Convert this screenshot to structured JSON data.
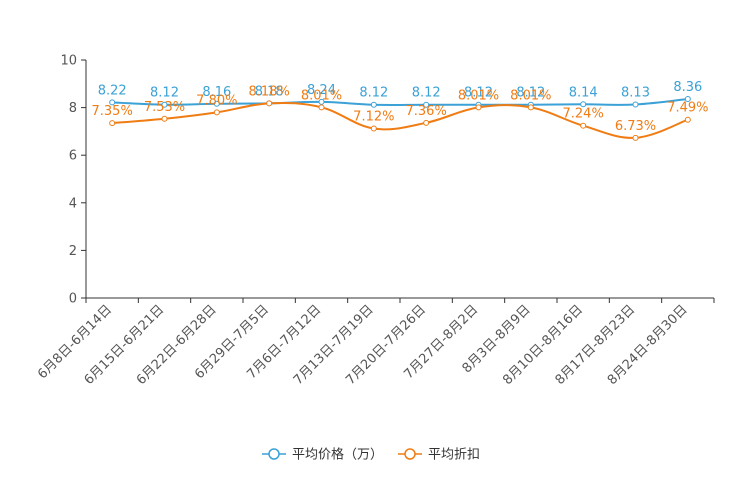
{
  "chart_data": {
    "type": "line",
    "title": "",
    "xlabel": "",
    "ylabel": "",
    "ylim": [
      0,
      10
    ],
    "yticks": [
      0,
      2,
      4,
      6,
      8,
      10
    ],
    "grid": false,
    "legend_position": "bottom-center",
    "categories": [
      "6月8日-6月14日",
      "6月15日-6月21日",
      "6月22日-6月28日",
      "6月29日-7月5日",
      "7月6日-7月12日",
      "7月13日-7月19日",
      "7月20日-7月26日",
      "7月27日-8月2日",
      "8月3日-8月9日",
      "8月10日-8月16日",
      "8月17日-8月23日",
      "8月24日-8月30日"
    ],
    "series": [
      {
        "name": "平均价格（万）",
        "color": "#3ba1d6",
        "values": [
          8.22,
          8.12,
          8.16,
          8.18,
          8.24,
          8.12,
          8.12,
          8.12,
          8.12,
          8.14,
          8.13,
          8.36
        ],
        "labels": [
          "8.22",
          "8.12",
          "8.16",
          "8.18",
          "8.24",
          "8.12",
          "8.12",
          "8.12",
          "8.12",
          "8.14",
          "8.13",
          "8.36"
        ]
      },
      {
        "name": "平均折扣",
        "color": "#f07c14",
        "values": [
          7.35,
          7.53,
          7.8,
          8.18,
          8.01,
          7.12,
          7.36,
          8.01,
          8.01,
          7.24,
          6.73,
          7.49
        ],
        "labels": [
          "7.35%",
          "7.53%",
          "7.80%",
          "8.18%",
          "8.01%",
          "7.12%",
          "7.36%",
          "8.01%",
          "8.01%",
          "7.24%",
          "6.73%",
          "7.49%"
        ]
      }
    ]
  }
}
